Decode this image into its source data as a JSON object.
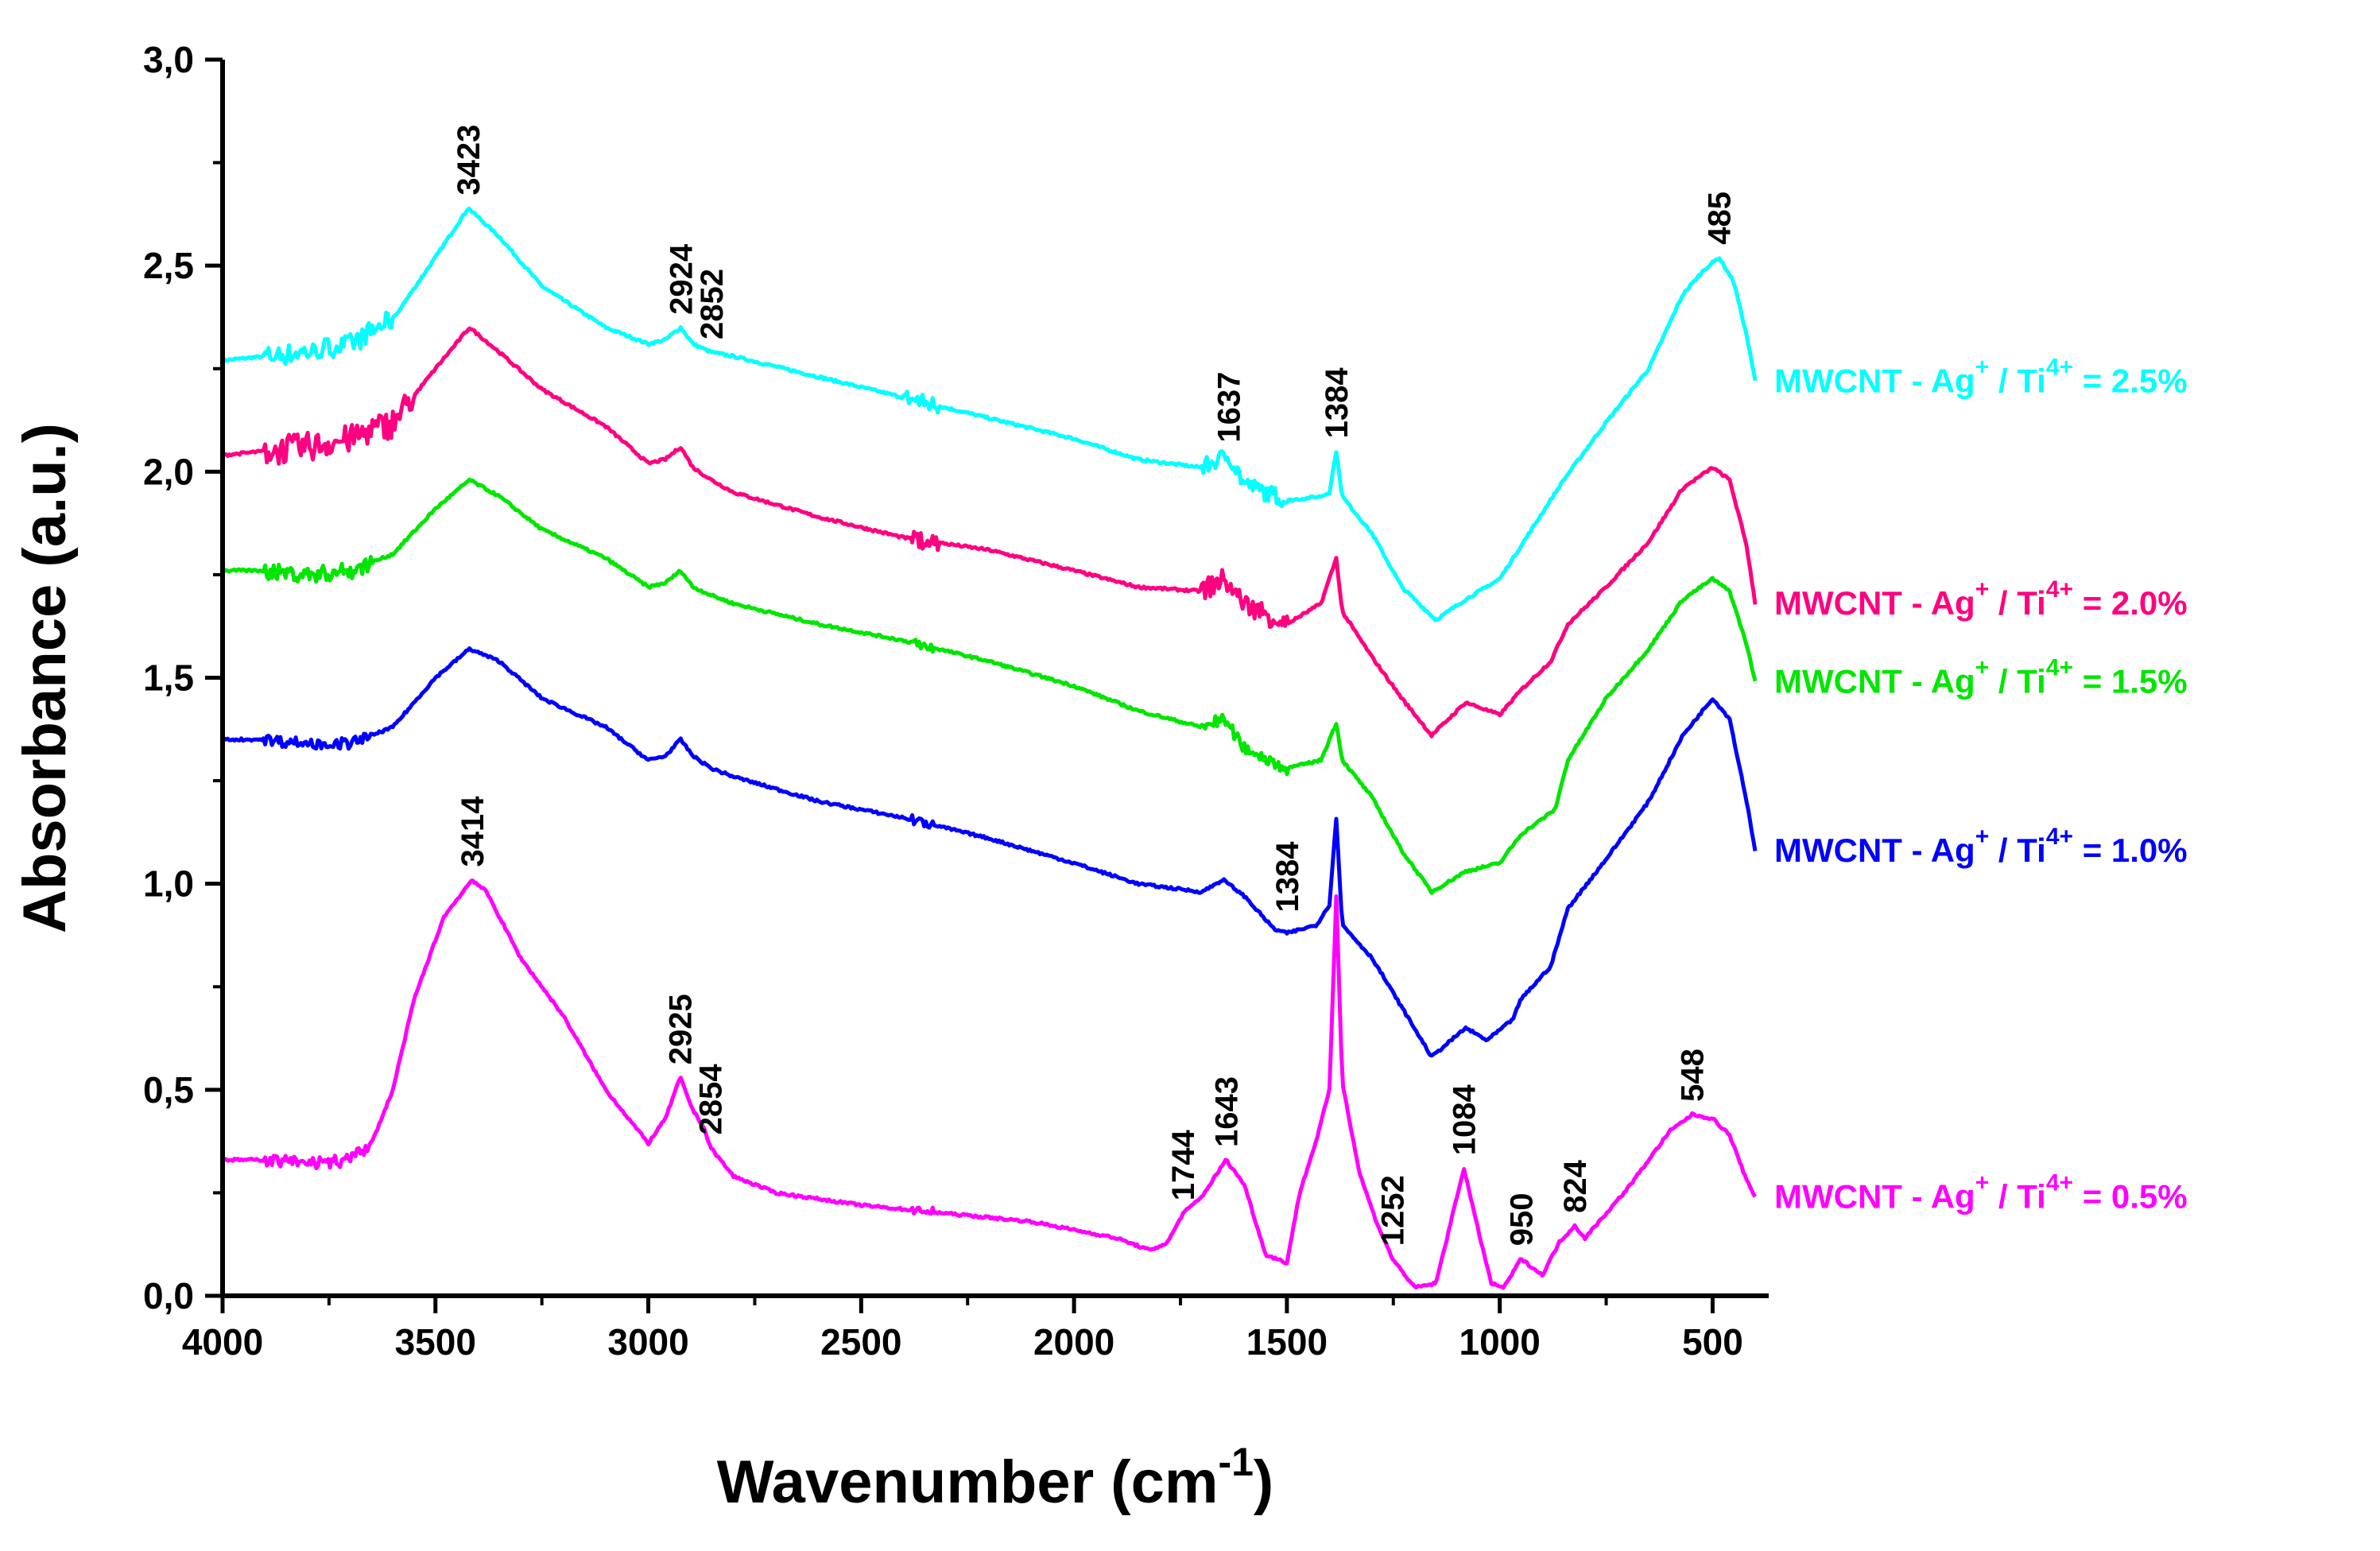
{
  "chart_data": {
    "type": "line",
    "title": "",
    "xlabel": "Wavenumber (cm",
    "xlabel_sup": "-1",
    "xlabel_tail": ")",
    "ylabel": "Absorbance (a.u.)",
    "xlim": [
      4000,
      400
    ],
    "ylim": [
      0,
      3.0
    ],
    "x_ticks": [
      4000,
      3500,
      3000,
      2500,
      2000,
      1500,
      1000,
      500
    ],
    "x_tick_labels": [
      "4000",
      "3500",
      "3000",
      "2500",
      "2000",
      "1500",
      "1000",
      "500"
    ],
    "y_ticks": [
      0,
      0.5,
      1.0,
      1.5,
      2.0,
      2.5,
      3.0
    ],
    "y_tick_labels": [
      "0,0",
      "0,5",
      "1,0",
      "1,5",
      "2,0",
      "2,5",
      "3,0"
    ],
    "grid": false,
    "legend_position": "right",
    "series": [
      {
        "name": "MWCNT - Ag+ / Ti4+ = 2.5%",
        "legend": {
          "prefix": "MWCNT - Ag",
          "sup1": "+",
          "mid": " / Ti",
          "sup2": "4+",
          "suffix": " = 2.5%"
        },
        "color": "#00FFFF",
        "noise": [
          [
            3900,
            3600,
            0.05
          ],
          [
            2400,
            2320,
            0.04
          ],
          [
            1700,
            1500,
            0.04
          ]
        ],
        "points": [
          [
            4000,
            2.27
          ],
          [
            3900,
            2.28
          ],
          [
            3800,
            2.29
          ],
          [
            3700,
            2.31
          ],
          [
            3600,
            2.37
          ],
          [
            3500,
            2.52
          ],
          [
            3423,
            2.64
          ],
          [
            3350,
            2.57
          ],
          [
            3250,
            2.45
          ],
          [
            3100,
            2.35
          ],
          [
            3000,
            2.31
          ],
          [
            2960,
            2.32
          ],
          [
            2924,
            2.35
          ],
          [
            2895,
            2.31
          ],
          [
            2852,
            2.29
          ],
          [
            2800,
            2.28
          ],
          [
            2600,
            2.23
          ],
          [
            2400,
            2.18
          ],
          [
            2200,
            2.13
          ],
          [
            2000,
            2.08
          ],
          [
            1850,
            2.03
          ],
          [
            1700,
            2.01
          ],
          [
            1637,
            2.04
          ],
          [
            1600,
            1.97
          ],
          [
            1500,
            1.93
          ],
          [
            1420,
            1.94
          ],
          [
            1400,
            1.95
          ],
          [
            1384,
            2.05
          ],
          [
            1370,
            1.94
          ],
          [
            1300,
            1.85
          ],
          [
            1230,
            1.72
          ],
          [
            1150,
            1.64
          ],
          [
            1080,
            1.69
          ],
          [
            1000,
            1.74
          ],
          [
            950,
            1.82
          ],
          [
            850,
            1.98
          ],
          [
            750,
            2.12
          ],
          [
            650,
            2.25
          ],
          [
            570,
            2.43
          ],
          [
            520,
            2.49
          ],
          [
            485,
            2.52
          ],
          [
            450,
            2.46
          ],
          [
            420,
            2.33
          ],
          [
            400,
            2.22
          ]
        ]
      },
      {
        "name": "MWCNT - Ag+ / Ti4+ = 2.0%",
        "legend": {
          "prefix": "MWCNT - Ag",
          "sup1": "+",
          "mid": " / Ti",
          "sup2": "4+",
          "suffix": " = 2.0%"
        },
        "color": "#FF0080",
        "noise": [
          [
            3900,
            3550,
            0.07
          ],
          [
            2380,
            2320,
            0.04
          ],
          [
            1700,
            1500,
            0.05
          ]
        ],
        "points": [
          [
            4000,
            2.04
          ],
          [
            3900,
            2.05
          ],
          [
            3800,
            2.06
          ],
          [
            3700,
            2.08
          ],
          [
            3600,
            2.12
          ],
          [
            3500,
            2.25
          ],
          [
            3420,
            2.35
          ],
          [
            3350,
            2.29
          ],
          [
            3250,
            2.2
          ],
          [
            3100,
            2.11
          ],
          [
            3000,
            2.02
          ],
          [
            2960,
            2.03
          ],
          [
            2924,
            2.06
          ],
          [
            2895,
            2.01
          ],
          [
            2852,
            1.98
          ],
          [
            2800,
            1.95
          ],
          [
            2600,
            1.89
          ],
          [
            2400,
            1.84
          ],
          [
            2200,
            1.81
          ],
          [
            2000,
            1.76
          ],
          [
            1850,
            1.72
          ],
          [
            1700,
            1.71
          ],
          [
            1650,
            1.74
          ],
          [
            1600,
            1.68
          ],
          [
            1500,
            1.63
          ],
          [
            1420,
            1.68
          ],
          [
            1384,
            1.79
          ],
          [
            1370,
            1.66
          ],
          [
            1300,
            1.55
          ],
          [
            1230,
            1.45
          ],
          [
            1160,
            1.36
          ],
          [
            1080,
            1.44
          ],
          [
            1000,
            1.41
          ],
          [
            950,
            1.47
          ],
          [
            880,
            1.54
          ],
          [
            840,
            1.63
          ],
          [
            750,
            1.72
          ],
          [
            650,
            1.83
          ],
          [
            570,
            1.96
          ],
          [
            500,
            2.01
          ],
          [
            460,
            1.98
          ],
          [
            420,
            1.82
          ],
          [
            400,
            1.68
          ]
        ]
      },
      {
        "name": "MWCNT - Ag+ / Ti4+ = 1.5%",
        "legend": {
          "prefix": "MWCNT - Ag",
          "sup1": "+",
          "mid": " / Ti",
          "sup2": "4+",
          "suffix": " = 1.5%"
        },
        "color": "#00E600",
        "noise": [
          [
            3900,
            3650,
            0.04
          ],
          [
            2380,
            2330,
            0.025
          ],
          [
            1700,
            1500,
            0.03
          ]
        ],
        "points": [
          [
            4000,
            1.76
          ],
          [
            3900,
            1.76
          ],
          [
            3800,
            1.75
          ],
          [
            3700,
            1.76
          ],
          [
            3600,
            1.8
          ],
          [
            3500,
            1.91
          ],
          [
            3420,
            1.98
          ],
          [
            3350,
            1.94
          ],
          [
            3250,
            1.86
          ],
          [
            3100,
            1.79
          ],
          [
            3000,
            1.72
          ],
          [
            2960,
            1.73
          ],
          [
            2924,
            1.76
          ],
          [
            2895,
            1.72
          ],
          [
            2852,
            1.7
          ],
          [
            2800,
            1.68
          ],
          [
            2600,
            1.63
          ],
          [
            2400,
            1.59
          ],
          [
            2200,
            1.54
          ],
          [
            2000,
            1.48
          ],
          [
            1850,
            1.42
          ],
          [
            1700,
            1.38
          ],
          [
            1650,
            1.4
          ],
          [
            1600,
            1.33
          ],
          [
            1500,
            1.28
          ],
          [
            1420,
            1.3
          ],
          [
            1384,
            1.39
          ],
          [
            1370,
            1.3
          ],
          [
            1300,
            1.21
          ],
          [
            1230,
            1.08
          ],
          [
            1160,
            0.98
          ],
          [
            1080,
            1.03
          ],
          [
            1000,
            1.05
          ],
          [
            950,
            1.12
          ],
          [
            870,
            1.18
          ],
          [
            840,
            1.3
          ],
          [
            750,
            1.45
          ],
          [
            650,
            1.57
          ],
          [
            570,
            1.69
          ],
          [
            500,
            1.74
          ],
          [
            460,
            1.71
          ],
          [
            420,
            1.58
          ],
          [
            400,
            1.49
          ]
        ]
      },
      {
        "name": "MWCNT - Ag+ / Ti4+ = 1.0%",
        "legend": {
          "prefix": "MWCNT - Ag",
          "sup1": "+",
          "mid": " / Ti",
          "sup2": "4+",
          "suffix": " = 1.0%"
        },
        "color": "#0000FF",
        "noise": [
          [
            3900,
            3650,
            0.025
          ],
          [
            2380,
            2330,
            0.02
          ]
        ],
        "points": [
          [
            4000,
            1.35
          ],
          [
            3900,
            1.35
          ],
          [
            3800,
            1.34
          ],
          [
            3700,
            1.34
          ],
          [
            3600,
            1.38
          ],
          [
            3500,
            1.5
          ],
          [
            3420,
            1.57
          ],
          [
            3350,
            1.54
          ],
          [
            3250,
            1.45
          ],
          [
            3100,
            1.38
          ],
          [
            3000,
            1.3
          ],
          [
            2960,
            1.31
          ],
          [
            2924,
            1.35
          ],
          [
            2895,
            1.31
          ],
          [
            2852,
            1.28
          ],
          [
            2800,
            1.26
          ],
          [
            2600,
            1.2
          ],
          [
            2400,
            1.16
          ],
          [
            2200,
            1.11
          ],
          [
            2000,
            1.05
          ],
          [
            1850,
            1.0
          ],
          [
            1700,
            0.98
          ],
          [
            1650,
            1.01
          ],
          [
            1600,
            0.97
          ],
          [
            1530,
            0.89
          ],
          [
            1500,
            0.88
          ],
          [
            1430,
            0.9
          ],
          [
            1400,
            0.95
          ],
          [
            1384,
            1.16
          ],
          [
            1370,
            0.9
          ],
          [
            1300,
            0.82
          ],
          [
            1230,
            0.7
          ],
          [
            1160,
            0.58
          ],
          [
            1080,
            0.65
          ],
          [
            1030,
            0.62
          ],
          [
            970,
            0.67
          ],
          [
            950,
            0.72
          ],
          [
            880,
            0.8
          ],
          [
            840,
            0.94
          ],
          [
            750,
            1.06
          ],
          [
            650,
            1.2
          ],
          [
            570,
            1.36
          ],
          [
            500,
            1.45
          ],
          [
            460,
            1.4
          ],
          [
            420,
            1.2
          ],
          [
            400,
            1.08
          ]
        ]
      },
      {
        "name": "MWCNT - Ag+ / Ti4+ = 0.5%",
        "legend": {
          "prefix": "MWCNT - Ag",
          "sup1": "+",
          "mid": " / Ti",
          "sup2": "4+",
          "suffix": " = 0.5%"
        },
        "color": "#FF00FF",
        "noise": [
          [
            3900,
            3650,
            0.03
          ],
          [
            2380,
            2330,
            0.02
          ]
        ],
        "points": [
          [
            4000,
            0.33
          ],
          [
            3900,
            0.33
          ],
          [
            3800,
            0.32
          ],
          [
            3700,
            0.33
          ],
          [
            3650,
            0.37
          ],
          [
            3600,
            0.5
          ],
          [
            3550,
            0.72
          ],
          [
            3480,
            0.92
          ],
          [
            3414,
            1.01
          ],
          [
            3380,
            0.98
          ],
          [
            3300,
            0.82
          ],
          [
            3200,
            0.68
          ],
          [
            3100,
            0.5
          ],
          [
            3000,
            0.37
          ],
          [
            2960,
            0.43
          ],
          [
            2925,
            0.53
          ],
          [
            2895,
            0.45
          ],
          [
            2870,
            0.41
          ],
          [
            2854,
            0.36
          ],
          [
            2800,
            0.29
          ],
          [
            2700,
            0.25
          ],
          [
            2500,
            0.22
          ],
          [
            2300,
            0.2
          ],
          [
            2100,
            0.18
          ],
          [
            1900,
            0.14
          ],
          [
            1820,
            0.11
          ],
          [
            1780,
            0.13
          ],
          [
            1744,
            0.2
          ],
          [
            1700,
            0.24
          ],
          [
            1643,
            0.33
          ],
          [
            1600,
            0.27
          ],
          [
            1550,
            0.1
          ],
          [
            1500,
            0.08
          ],
          [
            1470,
            0.25
          ],
          [
            1430,
            0.38
          ],
          [
            1400,
            0.5
          ],
          [
            1384,
            0.97
          ],
          [
            1370,
            0.52
          ],
          [
            1330,
            0.3
          ],
          [
            1290,
            0.18
          ],
          [
            1252,
            0.09
          ],
          [
            1200,
            0.02
          ],
          [
            1150,
            0.03
          ],
          [
            1110,
            0.2
          ],
          [
            1084,
            0.31
          ],
          [
            1060,
            0.2
          ],
          [
            1020,
            0.03
          ],
          [
            990,
            0.02
          ],
          [
            950,
            0.09
          ],
          [
            900,
            0.05
          ],
          [
            860,
            0.13
          ],
          [
            824,
            0.17
          ],
          [
            800,
            0.14
          ],
          [
            700,
            0.26
          ],
          [
            600,
            0.4
          ],
          [
            548,
            0.44
          ],
          [
            500,
            0.43
          ],
          [
            460,
            0.39
          ],
          [
            420,
            0.28
          ],
          [
            400,
            0.24
          ]
        ]
      }
    ],
    "annotations": [
      {
        "text": "3423",
        "x": 3423,
        "y": 2.64,
        "color": "#000000"
      },
      {
        "text": "2924",
        "x": 2924,
        "y": 2.35,
        "color": "#000000"
      },
      {
        "text": "2852",
        "x": 2852,
        "y": 2.29,
        "color": "#000000"
      },
      {
        "text": "1637",
        "x": 1637,
        "y": 2.04,
        "color": "#000000"
      },
      {
        "text": "1384",
        "x": 1384,
        "y": 2.05,
        "color": "#000000"
      },
      {
        "text": "485",
        "x": 485,
        "y": 2.52,
        "color": "#000000"
      },
      {
        "text": "1384",
        "x": 1500,
        "y": 0.9,
        "color": "#000000"
      },
      {
        "text": "3414",
        "x": 3414,
        "y": 1.01,
        "color": "#000000"
      },
      {
        "text": "2925",
        "x": 2925,
        "y": 0.53,
        "color": "#000000"
      },
      {
        "text": "2854",
        "x": 2854,
        "y": 0.36,
        "color": "#000000"
      },
      {
        "text": "1744",
        "x": 1744,
        "y": 0.2,
        "color": "#000000"
      },
      {
        "text": "1643",
        "x": 1643,
        "y": 0.33,
        "color": "#000000"
      },
      {
        "text": "1252",
        "x": 1252,
        "y": 0.09,
        "color": "#000000"
      },
      {
        "text": "1084",
        "x": 1084,
        "y": 0.31,
        "color": "#000000"
      },
      {
        "text": "950",
        "x": 950,
        "y": 0.09,
        "color": "#000000"
      },
      {
        "text": "824",
        "x": 824,
        "y": 0.17,
        "color": "#000000"
      },
      {
        "text": "548",
        "x": 548,
        "y": 0.44,
        "color": "#000000"
      }
    ]
  }
}
